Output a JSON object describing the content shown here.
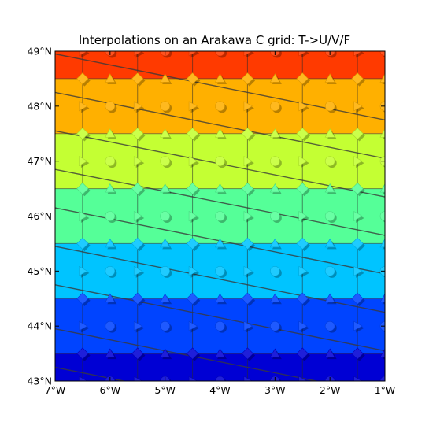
{
  "chart_data": {
    "type": "heatmap",
    "title": "Interpolations on an Arakawa C grid: T->U/V/F",
    "xlabel": "",
    "ylabel": "",
    "xlim": [
      -7,
      -1
    ],
    "ylim": [
      43,
      49
    ],
    "x_ticks": [
      -7,
      -6,
      -5,
      -4,
      -3,
      -2,
      -1
    ],
    "x_tick_labels": [
      "7°W",
      "6°W",
      "5°W",
      "4°W",
      "3°W",
      "2°W",
      "1°W"
    ],
    "y_ticks": [
      43,
      44,
      45,
      46,
      47,
      48,
      49
    ],
    "y_tick_labels": [
      "43°N",
      "44°N",
      "45°N",
      "46°N",
      "47°N",
      "48°N",
      "49°N"
    ],
    "grid": false,
    "colormap": "jet",
    "fill_levels": [
      {
        "lat_min": 43.0,
        "lat_max": 43.5,
        "color": "#0000d4"
      },
      {
        "lat_min": 43.5,
        "lat_max": 44.5,
        "color": "#0044ff"
      },
      {
        "lat_min": 44.5,
        "lat_max": 45.5,
        "color": "#00c4ff"
      },
      {
        "lat_min": 45.5,
        "lat_max": 46.5,
        "color": "#55ff98"
      },
      {
        "lat_min": 46.5,
        "lat_max": 47.5,
        "color": "#c4ff33"
      },
      {
        "lat_min": 47.5,
        "lat_max": 48.5,
        "color": "#ffb000"
      },
      {
        "lat_min": 48.5,
        "lat_max": 49.0,
        "color": "#ff3a00"
      }
    ],
    "contour_lines": {
      "color": "#3a3a3a",
      "slope_deg_lat_per_deg_lon": -0.2,
      "lat_at_7W": [
        43.25,
        43.95,
        44.75,
        45.45,
        46.15,
        46.85,
        47.55,
        48.25,
        48.95
      ]
    },
    "markers": {
      "T_points": {
        "shape": "circle",
        "lons": [
          -6,
          -5,
          -4,
          -3,
          -2,
          -1
        ],
        "lats": [
          43,
          44,
          45,
          46,
          47,
          48,
          49
        ]
      },
      "U_points": {
        "shape": "triangle-right",
        "lons": [
          -6.5,
          -5.5,
          -4.5,
          -3.5,
          -2.5,
          -1.5
        ],
        "lats": [
          43,
          44,
          45,
          46,
          47,
          48,
          49
        ]
      },
      "V_points": {
        "shape": "triangle-up",
        "lons": [
          -6,
          -5,
          -4,
          -3,
          -2,
          -1
        ],
        "lats": [
          43.5,
          44.5,
          45.5,
          46.5,
          47.5,
          48.5
        ]
      },
      "F_points": {
        "shape": "diamond",
        "lons": [
          -6.5,
          -5.5,
          -4.5,
          -3.5,
          -2.5,
          -1.5
        ],
        "lats": [
          43.5,
          44.5,
          45.5,
          46.5,
          47.5,
          48.5
        ]
      }
    }
  }
}
